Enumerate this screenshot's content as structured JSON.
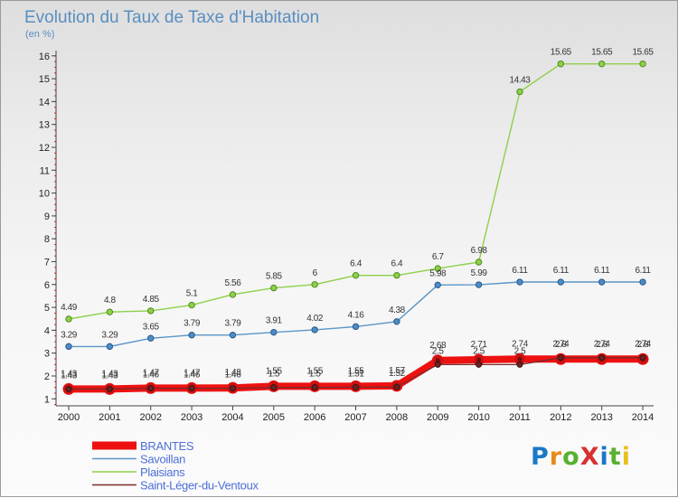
{
  "chart_data": {
    "type": "line",
    "title": "Evolution du Taux de Taxe d'Habitation",
    "subtitle": "(en %)",
    "xlabel": "",
    "ylabel": "",
    "x": [
      "2000",
      "2001",
      "2002",
      "2003",
      "2004",
      "2005",
      "2006",
      "2007",
      "2008",
      "2009",
      "2010",
      "2011",
      "2012",
      "2013",
      "2014"
    ],
    "ylim": [
      0.5,
      16.3
    ],
    "yticks": [
      "1",
      "2",
      "3",
      "4",
      "5",
      "6",
      "7",
      "8",
      "9",
      "10",
      "11",
      "12",
      "13",
      "14",
      "15",
      "16"
    ],
    "grid": false,
    "legend_position": "bottom-left",
    "series": [
      {
        "name": "BRANTES",
        "color": "#ee1111",
        "values": [
          1.43,
          1.43,
          1.47,
          1.47,
          1.48,
          1.55,
          1.55,
          1.55,
          1.57,
          2.68,
          2.71,
          2.74,
          2.74,
          2.74,
          2.74
        ],
        "labels": [
          "1.43",
          "1.43",
          "1.47",
          "1.47",
          "1.48",
          "1.55",
          "1.55",
          "1.55",
          "1.57",
          "2.68",
          "2.71",
          "2.74",
          "2.74",
          "2.74",
          "2.74"
        ]
      },
      {
        "name": "Savoillan",
        "color": "#5a96c8",
        "values": [
          3.29,
          3.29,
          3.65,
          3.79,
          3.79,
          3.91,
          4.02,
          4.16,
          4.38,
          5.98,
          5.99,
          6.11,
          6.11,
          6.11,
          6.11
        ],
        "labels": [
          "3.29",
          "3.29",
          "3.65",
          "3.79",
          "3.79",
          "3.91",
          "4.02",
          "4.16",
          "4.38",
          "5.98",
          "5.99",
          "6.11",
          "6.11",
          "6.11",
          "6.11"
        ]
      },
      {
        "name": "Plaisians",
        "color": "#8ed04a",
        "values": [
          4.49,
          4.8,
          4.85,
          5.1,
          5.56,
          5.85,
          6,
          6.4,
          6.4,
          6.7,
          6.98,
          14.43,
          15.65,
          15.65,
          15.65
        ],
        "labels": [
          "4.49",
          "4.8",
          "4.85",
          "5.1",
          "5.56",
          "5.85",
          "6",
          "6.4",
          "6.4",
          "6.7",
          "6.98",
          "14.43",
          "15.65",
          "15.65",
          "15.65"
        ]
      },
      {
        "name": "Saint-Léger-du-Ventoux",
        "color": "#7a2a2a",
        "values": [
          1.43,
          1.43,
          1.46,
          1.46,
          1.46,
          1.5,
          1.5,
          1.51,
          1.52,
          2.5,
          2.5,
          2.5,
          2.8,
          2.8,
          2.8
        ],
        "labels": [
          "1.43",
          "1.43",
          "1.46",
          "1.46",
          "1.46",
          "1.5",
          "1.5",
          "1.51",
          "1.52",
          "2.5",
          "2.5",
          "2.5",
          "2.8",
          "2.8",
          "2.8"
        ]
      }
    ]
  },
  "logo": {
    "text": "ProXiti",
    "letter_colors": [
      "#1a78c8",
      "#e88a1a",
      "#58b030",
      "#d83030",
      "#1a78c8",
      "#58b030",
      "#e8c020"
    ]
  }
}
